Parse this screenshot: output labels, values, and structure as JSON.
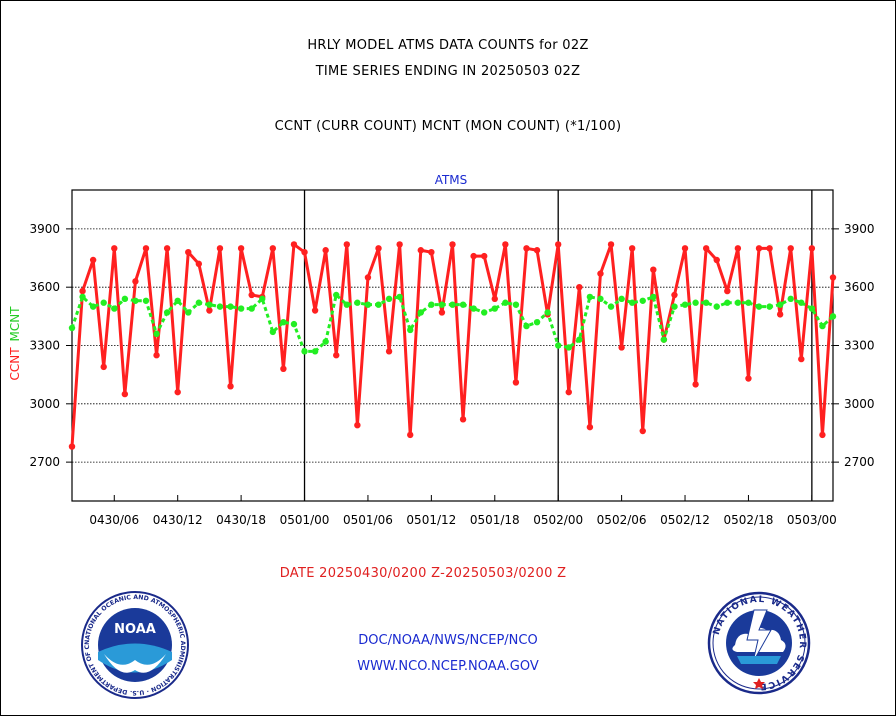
{
  "titles": {
    "line1": "HRLY MODEL ATMS DATA COUNTS for 02Z",
    "line2": "TIME SERIES ENDING IN 20250503 02Z",
    "line3": "CCNT (CURR COUNT) MCNT (MON COUNT) (*1/100)"
  },
  "date_range": "DATE 20250430/0200 Z-20250503/0200 Z",
  "footer": {
    "line1": "DOC/NOAA/NWS/NCEP/NCO",
    "line2": "WWW.NCO.NCEP.NOAA.GOV"
  },
  "logos": {
    "noaa": "NOAA",
    "noaa_ring": "NATIONAL OCEANIC AND ATMOSPHERIC ADMINISTRATION · U.S. DEPARTMENT OF COMMERCE",
    "nws_ring": "NATIONAL WEATHER SERVICE"
  },
  "colors": {
    "ccnt": "#ff2020",
    "mcnt": "#22ee22",
    "ylabel_ccnt": "#ff2020",
    "ylabel_mcnt": "#22cc22",
    "panel_title": "#1a2ad0"
  },
  "chart_data": {
    "type": "line",
    "title": "ATMS",
    "ylabel_left": "CCNT",
    "ylabel_right": "MCNT",
    "ylim": [
      2500,
      4100
    ],
    "yticks": [
      2700,
      3000,
      3300,
      3600,
      3900
    ],
    "grid": "horizontal dotted",
    "xlim": [
      0,
      72
    ],
    "x_ticks": [
      {
        "x": 4,
        "label": "0430/06"
      },
      {
        "x": 10,
        "label": "0430/12"
      },
      {
        "x": 16,
        "label": "0430/18"
      },
      {
        "x": 22,
        "label": "0501/00"
      },
      {
        "x": 28,
        "label": "0501/06"
      },
      {
        "x": 34,
        "label": "0501/12"
      },
      {
        "x": 40,
        "label": "0501/18"
      },
      {
        "x": 46,
        "label": "0502/00"
      },
      {
        "x": 52,
        "label": "0502/06"
      },
      {
        "x": 58,
        "label": "0502/12"
      },
      {
        "x": 64,
        "label": "0502/18"
      },
      {
        "x": 70,
        "label": "0503/00"
      }
    ],
    "day_lines": [
      22,
      46,
      70
    ],
    "series": [
      {
        "name": "CCNT",
        "values": [
          2780,
          3580,
          3740,
          3190,
          3800,
          3050,
          3630,
          3800,
          3250,
          3800,
          3060,
          3780,
          3720,
          3480,
          3800,
          3090,
          3800,
          3560,
          3550,
          3800,
          3180,
          3820,
          3780,
          3480,
          3790,
          3250,
          3820,
          2890,
          3650,
          3800,
          3270,
          3820,
          2840,
          3790,
          3780,
          3470,
          3820,
          2920,
          3760,
          3760,
          3540,
          3820,
          3110,
          3800,
          3790,
          3460,
          3820,
          3060,
          3600,
          2880,
          3670,
          3820,
          3290,
          3800,
          2860,
          3690,
          3330,
          3560,
          3800,
          3100,
          3800,
          3740,
          3580,
          3800,
          3130,
          3800,
          3800,
          3460,
          3800,
          3230,
          3800,
          2840,
          3650
        ]
      },
      {
        "name": "MCNT",
        "values": [
          3390,
          3550,
          3500,
          3520,
          3490,
          3540,
          3530,
          3530,
          3360,
          3470,
          3530,
          3470,
          3520,
          3510,
          3500,
          3500,
          3490,
          3490,
          3540,
          3370,
          3420,
          3410,
          3270,
          3270,
          3320,
          3560,
          3510,
          3520,
          3510,
          3510,
          3540,
          3550,
          3380,
          3470,
          3510,
          3510,
          3510,
          3510,
          3490,
          3470,
          3490,
          3520,
          3510,
          3400,
          3420,
          3470,
          3300,
          3290,
          3330,
          3550,
          3540,
          3500,
          3540,
          3520,
          3530,
          3550,
          3330,
          3500,
          3510,
          3520,
          3520,
          3500,
          3520,
          3520,
          3520,
          3500,
          3500,
          3510,
          3540,
          3520,
          3490,
          3400,
          3450
        ]
      }
    ]
  }
}
